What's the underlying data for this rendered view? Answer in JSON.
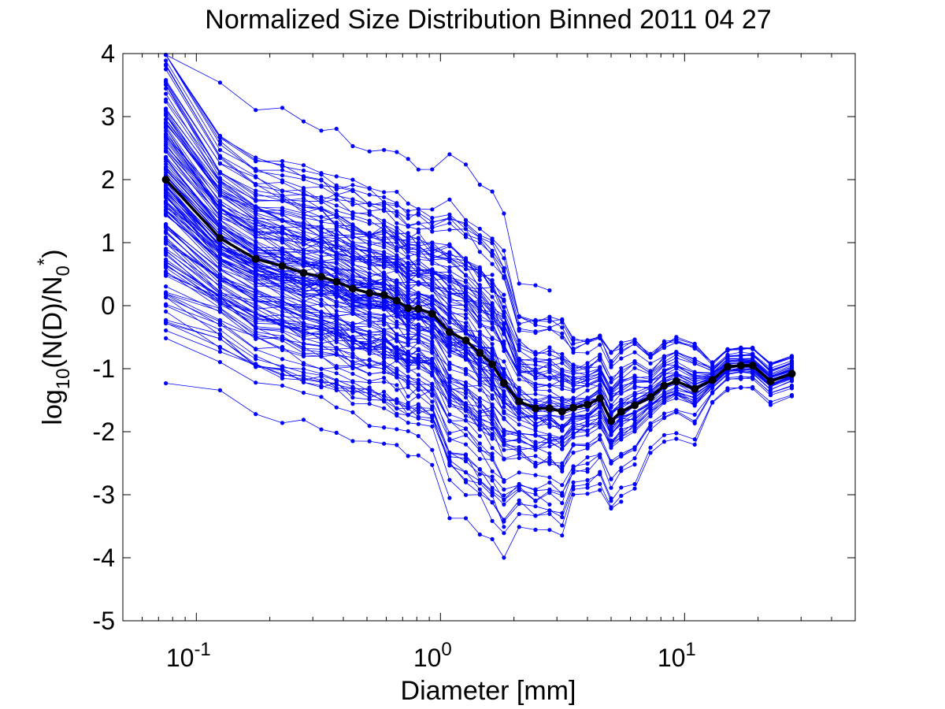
{
  "chart_data": {
    "type": "line",
    "title": "Normalized Size Distribution Binned 2011 04 27",
    "xlabel": "Diameter [mm]",
    "ylabel": {
      "prefix": "log",
      "base": "10",
      "body": "(N(D)/N",
      "sub": "0",
      "sup": "*",
      "suffix": ")"
    },
    "x_scale": "log",
    "xlim": [
      0.05,
      50
    ],
    "ylim": [
      -5,
      4
    ],
    "x_ticks": [
      {
        "value": 0.1,
        "base": "10",
        "exp": "-1"
      },
      {
        "value": 1,
        "base": "10",
        "exp": "0"
      },
      {
        "value": 10,
        "base": "10",
        "exp": "1"
      }
    ],
    "y_ticks": [
      4,
      3,
      2,
      1,
      0,
      -1,
      -2,
      -3,
      -4,
      -5
    ],
    "grid": false,
    "legend": "none",
    "colors": {
      "spectra": "#0000ff",
      "mean": "#000000"
    },
    "series": [
      {
        "role": "mean",
        "x": [
          0.075,
          0.125,
          0.175,
          0.225,
          0.275,
          0.325,
          0.375,
          0.437,
          0.512,
          0.587,
          0.662,
          0.737,
          0.812,
          0.925,
          1.09,
          1.27,
          1.45,
          1.63,
          1.82,
          2.1,
          2.45,
          2.8,
          3.15,
          3.5,
          4.0,
          4.5,
          5.0,
          5.5,
          6.25,
          7.25,
          8.25,
          9.25,
          11.0,
          13.0,
          15.0,
          17.0,
          19.0,
          22.5,
          27.5
        ],
        "y": [
          2.0,
          1.07,
          0.74,
          0.63,
          0.52,
          0.46,
          0.38,
          0.27,
          0.2,
          0.17,
          0.08,
          -0.04,
          -0.05,
          -0.13,
          -0.42,
          -0.55,
          -0.75,
          -0.93,
          -1.23,
          -1.52,
          -1.63,
          -1.63,
          -1.68,
          -1.62,
          -1.57,
          -1.47,
          -1.83,
          -1.68,
          -1.58,
          -1.45,
          -1.27,
          -1.2,
          -1.32,
          -1.18,
          -0.97,
          -0.95,
          -0.95,
          -1.2,
          -1.08
        ]
      }
    ]
  }
}
